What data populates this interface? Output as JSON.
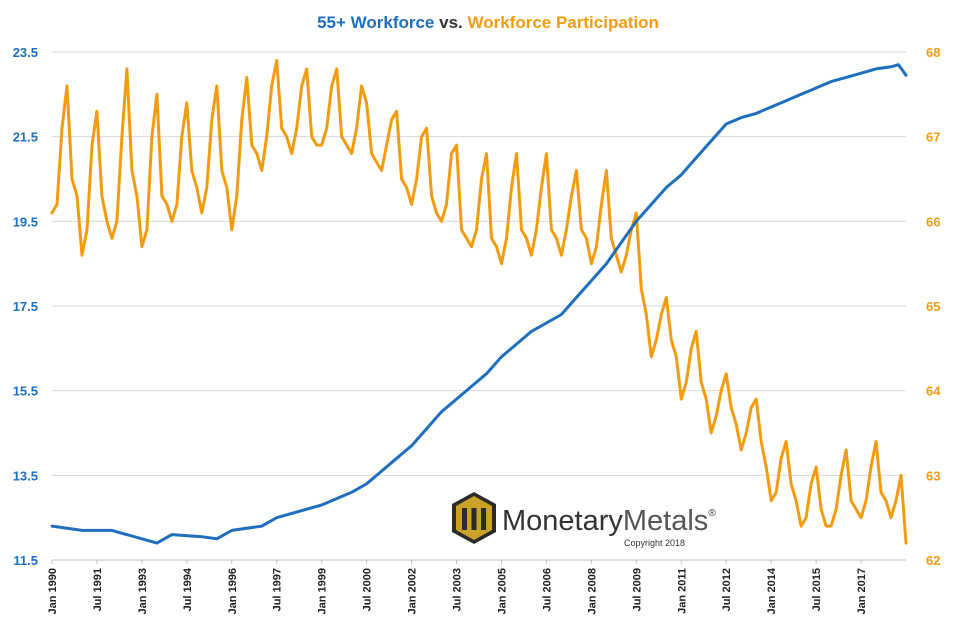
{
  "chart_data": {
    "type": "line",
    "title_parts": [
      {
        "text": "55+ Workforce",
        "color": "#1F6FBF"
      },
      {
        "text": " vs. ",
        "color": "#333333"
      },
      {
        "text": "Workforce Participation",
        "color": "#F39C12"
      }
    ],
    "x_range": [
      "1990-01",
      "2018-07"
    ],
    "x_tick_labels": [
      "Jan 1990",
      "Jul 1991",
      "Jan 1993",
      "Jul 1994",
      "Jan 1996",
      "Jul 1997",
      "Jan 1999",
      "Jul 2000",
      "Jan 2002",
      "Jul 2003",
      "Jan 2005",
      "Jul 2006",
      "Jan 2008",
      "Jul 2009",
      "Jan 2011",
      "Jul 2012",
      "Jan 2014",
      "Jul 2015",
      "Jan 2017"
    ],
    "y_left": {
      "range": [
        11.5,
        23.5
      ],
      "ticks": [
        "11.5",
        "13.5",
        "15.5",
        "17.5",
        "19.5",
        "21.5",
        "23.5"
      ],
      "color": "#1F6FBF"
    },
    "y_right": {
      "range": [
        62,
        68
      ],
      "ticks": [
        "62",
        "63",
        "64",
        "65",
        "66",
        "67",
        "68"
      ],
      "color": "#F39C12"
    },
    "grid": "horizontal",
    "series": [
      {
        "axis": "left",
        "color": "#1F6FBF",
        "points": [
          [
            "1990-01",
            12.3
          ],
          [
            "1991-01",
            12.2
          ],
          [
            "1992-01",
            12.2
          ],
          [
            "1993-01",
            12.0
          ],
          [
            "1993-07",
            11.9
          ],
          [
            "1994-01",
            12.1
          ],
          [
            "1995-01",
            12.05
          ],
          [
            "1995-07",
            12.0
          ],
          [
            "1996-01",
            12.2
          ],
          [
            "1997-01",
            12.3
          ],
          [
            "1997-07",
            12.5
          ],
          [
            "1998-01",
            12.6
          ],
          [
            "1999-01",
            12.8
          ],
          [
            "2000-01",
            13.1
          ],
          [
            "2000-07",
            13.3
          ],
          [
            "2001-01",
            13.6
          ],
          [
            "2002-01",
            14.2
          ],
          [
            "2002-07",
            14.6
          ],
          [
            "2003-01",
            15.0
          ],
          [
            "2003-07",
            15.3
          ],
          [
            "2004-01",
            15.6
          ],
          [
            "2004-07",
            15.9
          ],
          [
            "2005-01",
            16.3
          ],
          [
            "2005-07",
            16.6
          ],
          [
            "2006-01",
            16.9
          ],
          [
            "2007-01",
            17.3
          ],
          [
            "2007-07",
            17.7
          ],
          [
            "2008-01",
            18.1
          ],
          [
            "2008-07",
            18.5
          ],
          [
            "2009-01",
            19.0
          ],
          [
            "2009-07",
            19.5
          ],
          [
            "2010-01",
            19.9
          ],
          [
            "2010-07",
            20.3
          ],
          [
            "2011-01",
            20.6
          ],
          [
            "2011-07",
            21.0
          ],
          [
            "2012-01",
            21.4
          ],
          [
            "2012-07",
            21.8
          ],
          [
            "2013-01",
            21.95
          ],
          [
            "2013-07",
            22.05
          ],
          [
            "2014-01",
            22.2
          ],
          [
            "2014-07",
            22.35
          ],
          [
            "2015-01",
            22.5
          ],
          [
            "2015-07",
            22.65
          ],
          [
            "2016-01",
            22.8
          ],
          [
            "2016-07",
            22.9
          ],
          [
            "2017-01",
            23.0
          ],
          [
            "2017-07",
            23.1
          ],
          [
            "2018-01",
            23.15
          ],
          [
            "2018-04",
            23.2
          ],
          [
            "2018-07",
            22.95
          ]
        ]
      },
      {
        "axis": "right",
        "color": "#F39C12",
        "points": [
          [
            "1990-01",
            66.1
          ],
          [
            "1990-03",
            66.2
          ],
          [
            "1990-05",
            67.1
          ],
          [
            "1990-07",
            67.6
          ],
          [
            "1990-09",
            66.5
          ],
          [
            "1990-11",
            66.3
          ],
          [
            "1991-01",
            65.6
          ],
          [
            "1991-03",
            65.9
          ],
          [
            "1991-05",
            66.9
          ],
          [
            "1991-07",
            67.3
          ],
          [
            "1991-09",
            66.3
          ],
          [
            "1991-11",
            66.0
          ],
          [
            "1992-01",
            65.8
          ],
          [
            "1992-03",
            66.0
          ],
          [
            "1992-05",
            67.0
          ],
          [
            "1992-07",
            67.8
          ],
          [
            "1992-09",
            66.6
          ],
          [
            "1992-11",
            66.3
          ],
          [
            "1993-01",
            65.7
          ],
          [
            "1993-03",
            65.9
          ],
          [
            "1993-05",
            67.0
          ],
          [
            "1993-07",
            67.5
          ],
          [
            "1993-09",
            66.3
          ],
          [
            "1993-11",
            66.2
          ],
          [
            "1994-01",
            66.0
          ],
          [
            "1994-03",
            66.2
          ],
          [
            "1994-05",
            67.0
          ],
          [
            "1994-07",
            67.4
          ],
          [
            "1994-09",
            66.6
          ],
          [
            "1994-11",
            66.4
          ],
          [
            "1995-01",
            66.1
          ],
          [
            "1995-03",
            66.4
          ],
          [
            "1995-05",
            67.2
          ],
          [
            "1995-07",
            67.6
          ],
          [
            "1995-09",
            66.6
          ],
          [
            "1995-11",
            66.4
          ],
          [
            "1996-01",
            65.9
          ],
          [
            "1996-03",
            66.3
          ],
          [
            "1996-05",
            67.2
          ],
          [
            "1996-07",
            67.7
          ],
          [
            "1996-09",
            66.9
          ],
          [
            "1996-11",
            66.8
          ],
          [
            "1997-01",
            66.6
          ],
          [
            "1997-03",
            67.0
          ],
          [
            "1997-05",
            67.6
          ],
          [
            "1997-07",
            67.9
          ],
          [
            "1997-09",
            67.1
          ],
          [
            "1997-11",
            67.0
          ],
          [
            "1998-01",
            66.8
          ],
          [
            "1998-03",
            67.1
          ],
          [
            "1998-05",
            67.6
          ],
          [
            "1998-07",
            67.8
          ],
          [
            "1998-09",
            67.0
          ],
          [
            "1998-11",
            66.9
          ],
          [
            "1999-01",
            66.9
          ],
          [
            "1999-03",
            67.1
          ],
          [
            "1999-05",
            67.6
          ],
          [
            "1999-07",
            67.8
          ],
          [
            "1999-09",
            67.0
          ],
          [
            "1999-11",
            66.9
          ],
          [
            "2000-01",
            66.8
          ],
          [
            "2000-03",
            67.1
          ],
          [
            "2000-05",
            67.6
          ],
          [
            "2000-07",
            67.4
          ],
          [
            "2000-09",
            66.8
          ],
          [
            "2000-11",
            66.7
          ],
          [
            "2001-01",
            66.6
          ],
          [
            "2001-03",
            66.9
          ],
          [
            "2001-05",
            67.2
          ],
          [
            "2001-07",
            67.3
          ],
          [
            "2001-09",
            66.5
          ],
          [
            "2001-11",
            66.4
          ],
          [
            "2002-01",
            66.2
          ],
          [
            "2002-03",
            66.5
          ],
          [
            "2002-05",
            67.0
          ],
          [
            "2002-07",
            67.1
          ],
          [
            "2002-09",
            66.3
          ],
          [
            "2002-11",
            66.1
          ],
          [
            "2003-01",
            66.0
          ],
          [
            "2003-03",
            66.2
          ],
          [
            "2003-05",
            66.8
          ],
          [
            "2003-07",
            66.9
          ],
          [
            "2003-09",
            65.9
          ],
          [
            "2003-11",
            65.8
          ],
          [
            "2004-01",
            65.7
          ],
          [
            "2004-03",
            65.9
          ],
          [
            "2004-05",
            66.5
          ],
          [
            "2004-07",
            66.8
          ],
          [
            "2004-09",
            65.8
          ],
          [
            "2004-11",
            65.7
          ],
          [
            "2005-01",
            65.5
          ],
          [
            "2005-03",
            65.8
          ],
          [
            "2005-05",
            66.4
          ],
          [
            "2005-07",
            66.8
          ],
          [
            "2005-09",
            65.9
          ],
          [
            "2005-11",
            65.8
          ],
          [
            "2006-01",
            65.6
          ],
          [
            "2006-03",
            65.9
          ],
          [
            "2006-05",
            66.4
          ],
          [
            "2006-07",
            66.8
          ],
          [
            "2006-09",
            65.9
          ],
          [
            "2006-11",
            65.8
          ],
          [
            "2007-01",
            65.6
          ],
          [
            "2007-03",
            65.9
          ],
          [
            "2007-05",
            66.3
          ],
          [
            "2007-07",
            66.6
          ],
          [
            "2007-09",
            65.9
          ],
          [
            "2007-11",
            65.8
          ],
          [
            "2008-01",
            65.5
          ],
          [
            "2008-03",
            65.7
          ],
          [
            "2008-05",
            66.2
          ],
          [
            "2008-07",
            66.6
          ],
          [
            "2008-09",
            65.8
          ],
          [
            "2008-11",
            65.6
          ],
          [
            "2009-01",
            65.4
          ],
          [
            "2009-03",
            65.6
          ],
          [
            "2009-05",
            65.9
          ],
          [
            "2009-07",
            66.1
          ],
          [
            "2009-09",
            65.2
          ],
          [
            "2009-11",
            64.9
          ],
          [
            "2010-01",
            64.4
          ],
          [
            "2010-03",
            64.6
          ],
          [
            "2010-05",
            64.9
          ],
          [
            "2010-07",
            65.1
          ],
          [
            "2010-09",
            64.6
          ],
          [
            "2010-11",
            64.4
          ],
          [
            "2011-01",
            63.9
          ],
          [
            "2011-03",
            64.1
          ],
          [
            "2011-05",
            64.5
          ],
          [
            "2011-07",
            64.7
          ],
          [
            "2011-09",
            64.1
          ],
          [
            "2011-11",
            63.9
          ],
          [
            "2012-01",
            63.5
          ],
          [
            "2012-03",
            63.7
          ],
          [
            "2012-05",
            64.0
          ],
          [
            "2012-07",
            64.2
          ],
          [
            "2012-09",
            63.8
          ],
          [
            "2012-11",
            63.6
          ],
          [
            "2013-01",
            63.3
          ],
          [
            "2013-03",
            63.5
          ],
          [
            "2013-05",
            63.8
          ],
          [
            "2013-07",
            63.9
          ],
          [
            "2013-09",
            63.4
          ],
          [
            "2013-11",
            63.1
          ],
          [
            "2014-01",
            62.7
          ],
          [
            "2014-03",
            62.8
          ],
          [
            "2014-05",
            63.2
          ],
          [
            "2014-07",
            63.4
          ],
          [
            "2014-09",
            62.9
          ],
          [
            "2014-11",
            62.7
          ],
          [
            "2015-01",
            62.4
          ],
          [
            "2015-03",
            62.5
          ],
          [
            "2015-05",
            62.9
          ],
          [
            "2015-07",
            63.1
          ],
          [
            "2015-09",
            62.6
          ],
          [
            "2015-11",
            62.4
          ],
          [
            "2016-01",
            62.4
          ],
          [
            "2016-03",
            62.6
          ],
          [
            "2016-05",
            63.0
          ],
          [
            "2016-07",
            63.3
          ],
          [
            "2016-09",
            62.7
          ],
          [
            "2016-11",
            62.6
          ],
          [
            "2017-01",
            62.5
          ],
          [
            "2017-03",
            62.7
          ],
          [
            "2017-05",
            63.1
          ],
          [
            "2017-07",
            63.4
          ],
          [
            "2017-09",
            62.8
          ],
          [
            "2017-11",
            62.7
          ],
          [
            "2018-01",
            62.5
          ],
          [
            "2018-03",
            62.7
          ],
          [
            "2018-05",
            63.0
          ],
          [
            "2018-07",
            62.2
          ]
        ]
      }
    ]
  },
  "logo": {
    "text_1": "Monetary",
    "text_2": "Metals",
    "registered": "®",
    "copyright": "Copyright 2018"
  }
}
